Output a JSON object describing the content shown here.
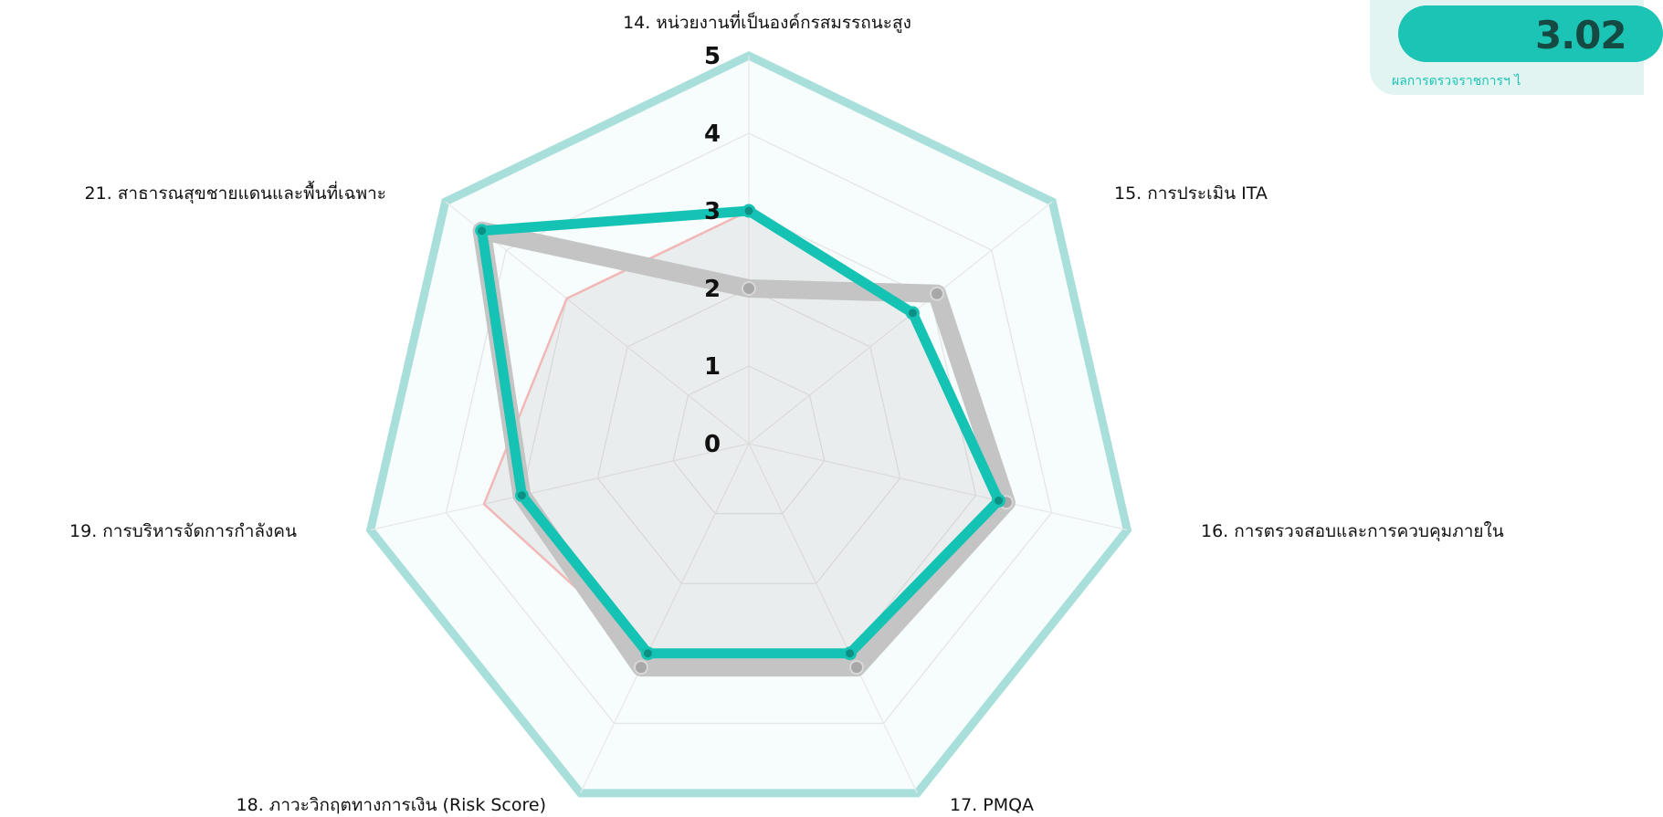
{
  "summary": {
    "score": "3.02",
    "caption": "ผลการตรวจราชการฯ ไ"
  },
  "chart_data": {
    "type": "radar",
    "title": "",
    "axes": [
      "14. หน่วยงานที่เป็นองค์กรสมรรถนะสูง",
      "15. การประเมิน ITA",
      "16. การตรวจสอบและการควบคุมภายใน",
      "17. PMQA",
      "18. ภาวะวิกฤตทางการเงิน (Risk Score)",
      "19. การบริหารจัดการกำลังคน",
      "21. สาธารณสุขชายแดนและพื้นที่เฉพาะ"
    ],
    "ticks": [
      "0",
      "1",
      "2",
      "3",
      "4",
      "5"
    ],
    "rlim": [
      0,
      5
    ],
    "grid": true,
    "series": [
      {
        "values": [
          3.0,
          2.7,
          3.3,
          3.0,
          3.0,
          3.5,
          3.0
        ],
        "color": "#f2b8b8",
        "fill": "rgba(120,110,110,0.10)"
      },
      {
        "values": [
          2.0,
          3.1,
          3.4,
          3.2,
          3.2,
          3.0,
          4.4
        ],
        "color": "#c4c4c4"
      },
      {
        "values": [
          3.0,
          2.7,
          3.3,
          3.0,
          3.0,
          3.0,
          4.4
        ],
        "color": "#14c3b3"
      }
    ],
    "outer_ring_color": "#a9dfdb"
  }
}
